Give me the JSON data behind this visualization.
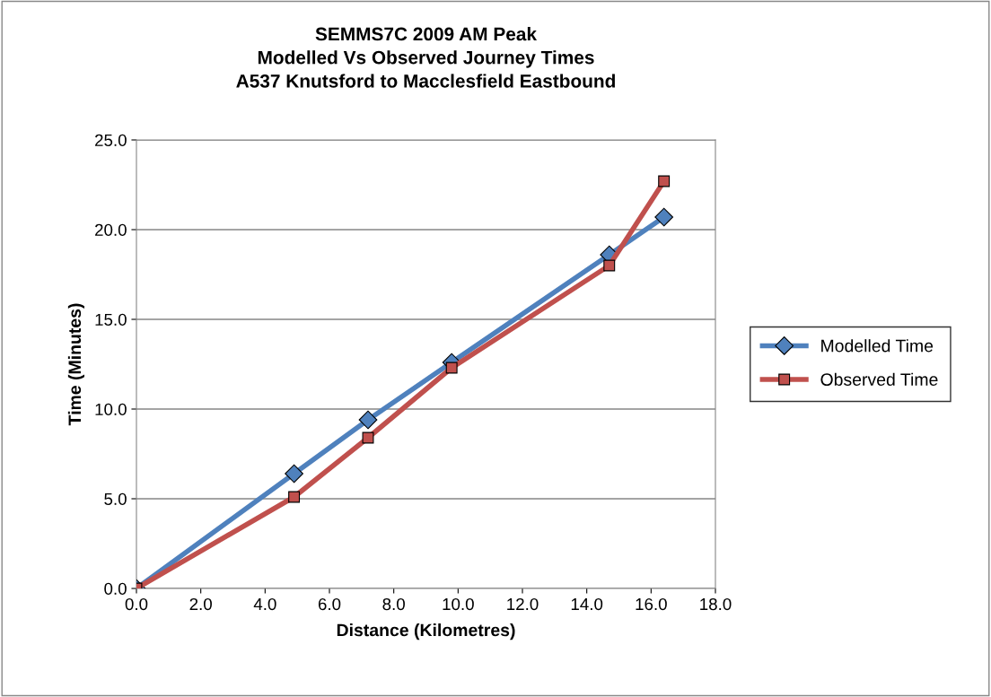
{
  "chart_data": {
    "type": "line",
    "title": "SEMMS7C 2009 AM Peak\nModelled Vs Observed Journey Times\nA537 Knutsford to Macclesfield Eastbound",
    "xlabel": "Distance (Kilometres)",
    "ylabel": "Time (Minutes)",
    "x": [
      0.0,
      4.9,
      7.2,
      9.8,
      14.7,
      16.4
    ],
    "series": [
      {
        "name": "Modelled Time",
        "color": "#4f81bd",
        "marker": "diamond",
        "values": [
          0.0,
          6.4,
          9.4,
          12.6,
          18.6,
          20.7
        ]
      },
      {
        "name": "Observed Time",
        "color": "#c0504d",
        "marker": "square",
        "values": [
          0.0,
          5.1,
          8.4,
          12.3,
          18.0,
          22.7
        ]
      }
    ],
    "xlim": [
      0,
      18
    ],
    "xticks": [
      {
        "value": 0,
        "label": "0.0"
      },
      {
        "value": 2,
        "label": "2.0"
      },
      {
        "value": 4,
        "label": "4.0"
      },
      {
        "value": 6,
        "label": "6.0"
      },
      {
        "value": 8,
        "label": "8.0"
      },
      {
        "value": 10,
        "label": "10.0"
      },
      {
        "value": 12,
        "label": "12.0"
      },
      {
        "value": 14,
        "label": "14.0"
      },
      {
        "value": 16,
        "label": "16.0"
      },
      {
        "value": 18,
        "label": "18.0"
      }
    ],
    "ylim": [
      0,
      25
    ],
    "yticks": [
      {
        "value": 0,
        "label": "0.0"
      },
      {
        "value": 5,
        "label": "5.0"
      },
      {
        "value": 10,
        "label": "10.0"
      },
      {
        "value": 15,
        "label": "15.0"
      },
      {
        "value": 20,
        "label": "20.0"
      },
      {
        "value": 25,
        "label": "25.0"
      }
    ],
    "grid": "y",
    "legend": "right",
    "line_style": "solid"
  }
}
